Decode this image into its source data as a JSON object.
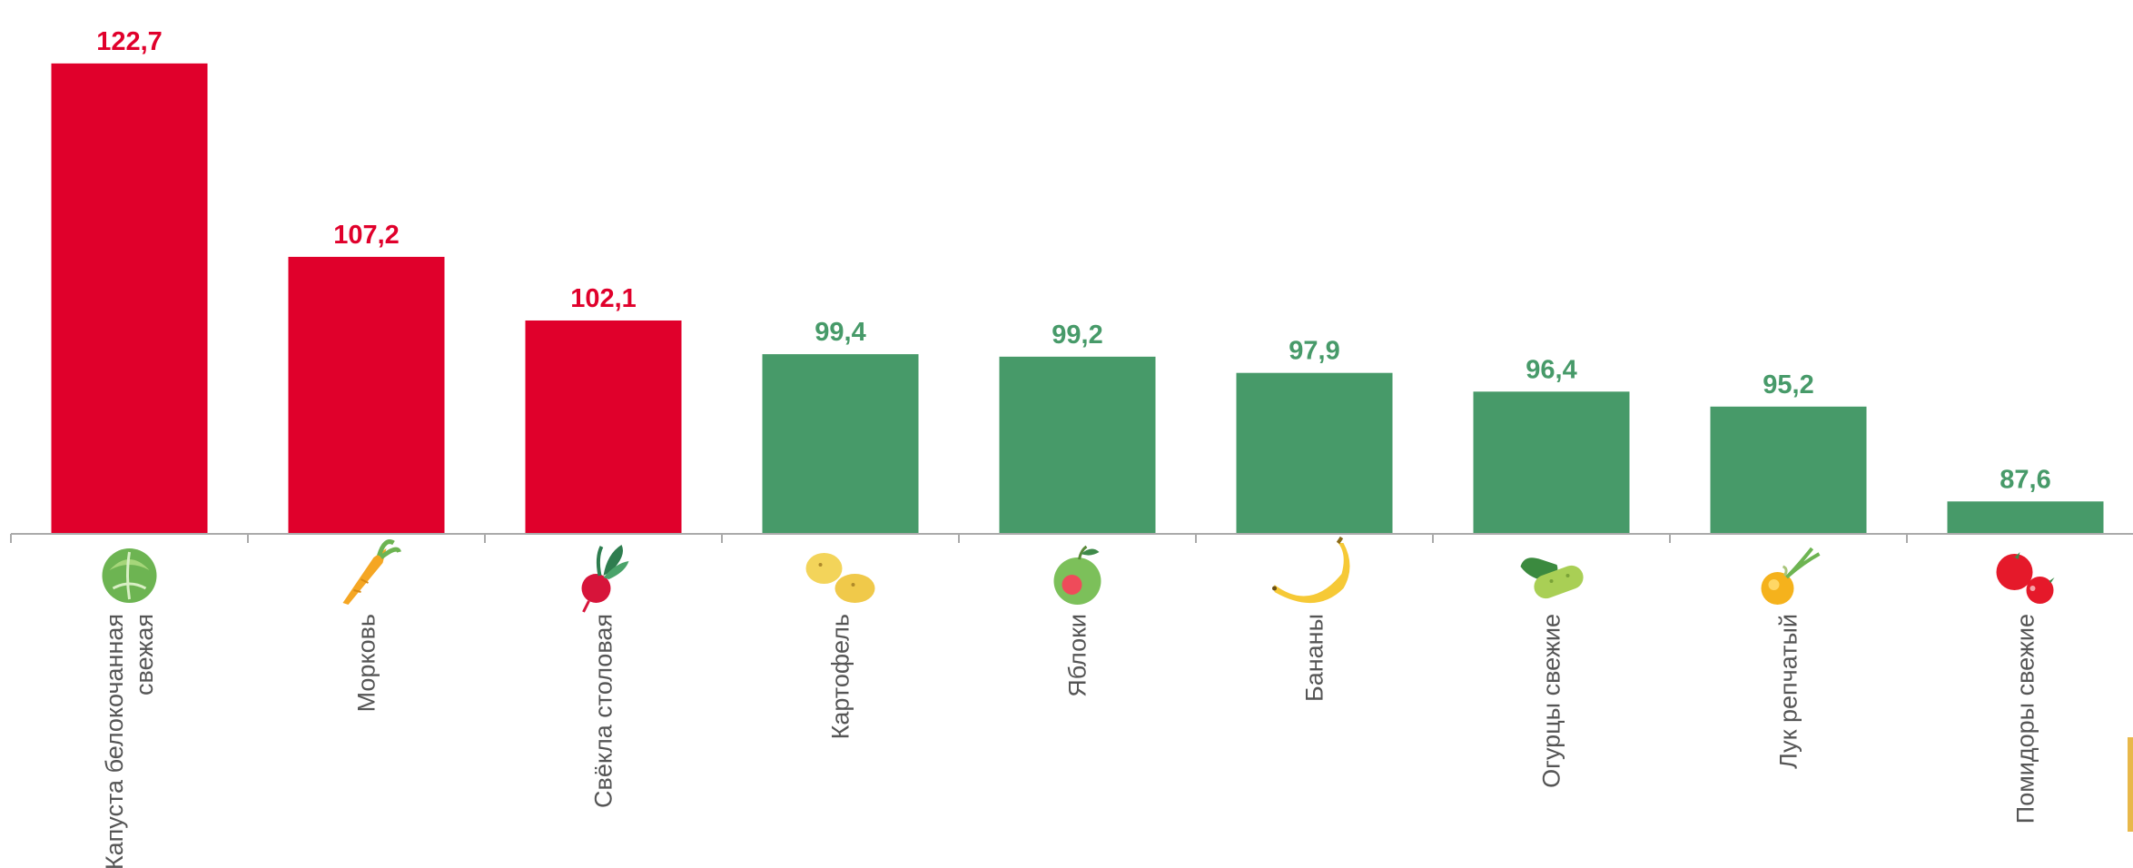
{
  "chart_data": {
    "type": "bar",
    "categories": [
      [
        "Капуста белокочанная",
        "свежая"
      ],
      [
        "Морковь"
      ],
      [
        "Свёкла столовая"
      ],
      [
        "Картофель"
      ],
      [
        "Яблоки"
      ],
      [
        "Бананы"
      ],
      [
        "Огурцы свежие"
      ],
      [
        "Лук репчатый"
      ],
      [
        "Помидоры свежие"
      ]
    ],
    "values": [
      122.7,
      107.2,
      102.1,
      99.4,
      99.2,
      97.9,
      96.4,
      95.2,
      87.6
    ],
    "value_labels": [
      "122,7",
      "107,2",
      "102,1",
      "99,4",
      "99,2",
      "97,9",
      "96,4",
      "95,2",
      "87,6"
    ],
    "icons": [
      "cabbage-icon",
      "carrot-icon",
      "beet-icon",
      "potato-icon",
      "apple-icon",
      "banana-icon",
      "cucumber-icon",
      "onion-icon",
      "tomato-icon"
    ],
    "ylim": [
      85,
      124
    ],
    "grid": false,
    "colors": {
      "above_100": "#e0002b",
      "below_100": "#479a69",
      "axis": "#aaaaaa",
      "category_text": "#555555"
    }
  }
}
